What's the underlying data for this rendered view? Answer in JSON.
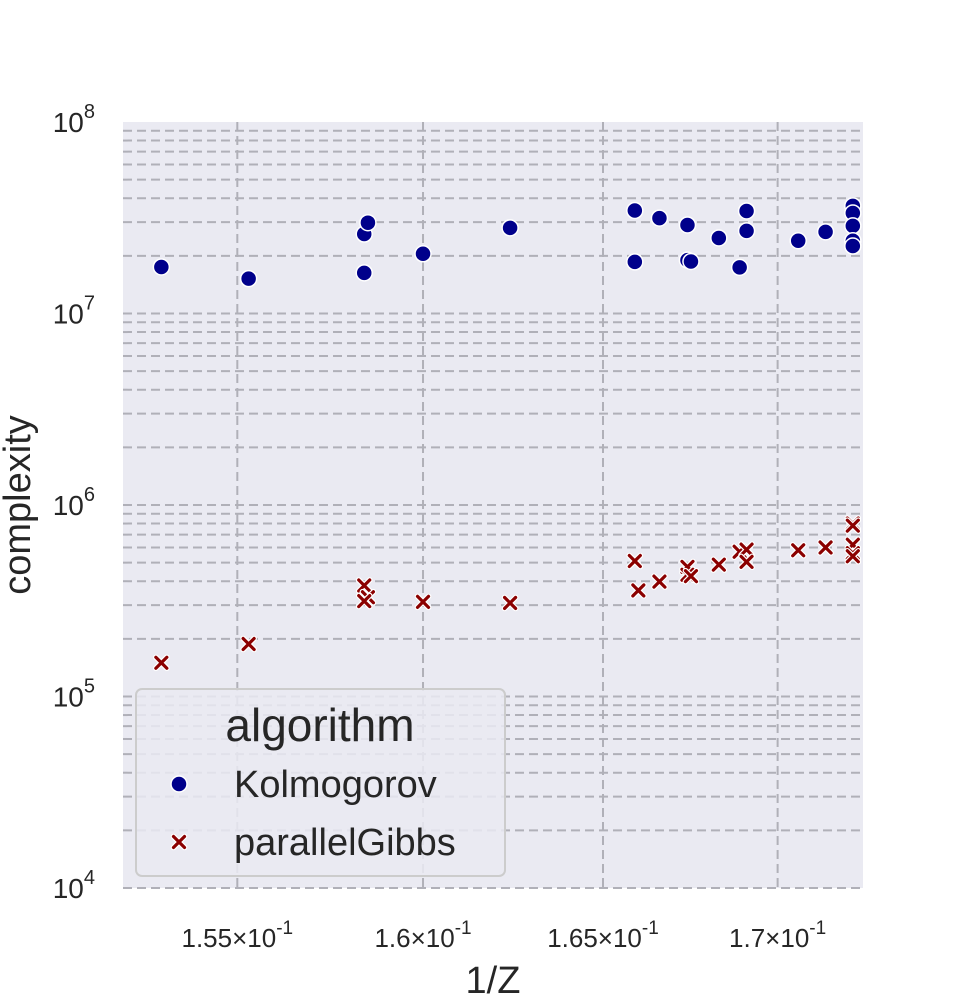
{
  "chart_data": {
    "type": "scatter",
    "xlabel": "1/Z",
    "ylabel": "complexity",
    "xscale": "log",
    "yscale": "log",
    "xlim": [
      0.152,
      0.1725
    ],
    "ylim": [
      10000,
      100000000
    ],
    "grid": true,
    "background": "#eaeaf2",
    "gridline_style": "dashed",
    "x_ticks": [
      {
        "value": 0.155,
        "base": "1.55",
        "exp": "-1"
      },
      {
        "value": 0.16,
        "base": "1.6",
        "exp": "-1"
      },
      {
        "value": 0.165,
        "base": "1.65",
        "exp": "-1"
      },
      {
        "value": 0.17,
        "base": "1.7",
        "exp": "-1"
      }
    ],
    "y_ticks": [
      {
        "value": 10000,
        "base": "10",
        "exp": "4"
      },
      {
        "value": 100000,
        "base": "10",
        "exp": "5"
      },
      {
        "value": 1000000,
        "base": "10",
        "exp": "6"
      },
      {
        "value": 10000000,
        "base": "10",
        "exp": "7"
      },
      {
        "value": 100000000,
        "base": "10",
        "exp": "8"
      }
    ],
    "legend": {
      "title": "algorithm",
      "position": "lower-left"
    },
    "series": [
      {
        "name": "Kolmogorov",
        "marker": "circle",
        "color": "#00008b",
        "points": [
          {
            "x": 0.153,
            "y": 17500000
          },
          {
            "x": 0.1553,
            "y": 15200000
          },
          {
            "x": 0.1584,
            "y": 26000000
          },
          {
            "x": 0.1585,
            "y": 29800000
          },
          {
            "x": 0.1584,
            "y": 16300000
          },
          {
            "x": 0.16,
            "y": 20500000
          },
          {
            "x": 0.1624,
            "y": 28000000
          },
          {
            "x": 0.1659,
            "y": 34500000
          },
          {
            "x": 0.1659,
            "y": 18600000
          },
          {
            "x": 0.1666,
            "y": 31500000
          },
          {
            "x": 0.1674,
            "y": 29000000
          },
          {
            "x": 0.1674,
            "y": 19000000
          },
          {
            "x": 0.1675,
            "y": 18700000
          },
          {
            "x": 0.1683,
            "y": 24800000
          },
          {
            "x": 0.1689,
            "y": 17400000
          },
          {
            "x": 0.1691,
            "y": 34300000
          },
          {
            "x": 0.1691,
            "y": 27000000
          },
          {
            "x": 0.1706,
            "y": 24000000
          },
          {
            "x": 0.1714,
            "y": 26700000
          },
          {
            "x": 0.1722,
            "y": 36500000
          },
          {
            "x": 0.1722,
            "y": 33500000
          },
          {
            "x": 0.1722,
            "y": 28700000
          },
          {
            "x": 0.1722,
            "y": 24000000
          },
          {
            "x": 0.1722,
            "y": 22500000
          }
        ]
      },
      {
        "name": "parallelGibbs",
        "marker": "x",
        "color": "#8b0000",
        "points": [
          {
            "x": 0.153,
            "y": 150000
          },
          {
            "x": 0.1553,
            "y": 188000
          },
          {
            "x": 0.1584,
            "y": 380000
          },
          {
            "x": 0.1585,
            "y": 330000
          },
          {
            "x": 0.1584,
            "y": 315000
          },
          {
            "x": 0.16,
            "y": 312000
          },
          {
            "x": 0.1624,
            "y": 308000
          },
          {
            "x": 0.1659,
            "y": 510000
          },
          {
            "x": 0.166,
            "y": 358000
          },
          {
            "x": 0.1666,
            "y": 398000
          },
          {
            "x": 0.1674,
            "y": 475000
          },
          {
            "x": 0.1674,
            "y": 432000
          },
          {
            "x": 0.1675,
            "y": 425000
          },
          {
            "x": 0.1683,
            "y": 488000
          },
          {
            "x": 0.1689,
            "y": 570000
          },
          {
            "x": 0.1691,
            "y": 585000
          },
          {
            "x": 0.1691,
            "y": 505000
          },
          {
            "x": 0.1706,
            "y": 580000
          },
          {
            "x": 0.1714,
            "y": 600000
          },
          {
            "x": 0.1722,
            "y": 800000
          },
          {
            "x": 0.1722,
            "y": 780000
          },
          {
            "x": 0.1722,
            "y": 620000
          },
          {
            "x": 0.1722,
            "y": 560000
          },
          {
            "x": 0.1722,
            "y": 540000
          }
        ]
      }
    ]
  }
}
